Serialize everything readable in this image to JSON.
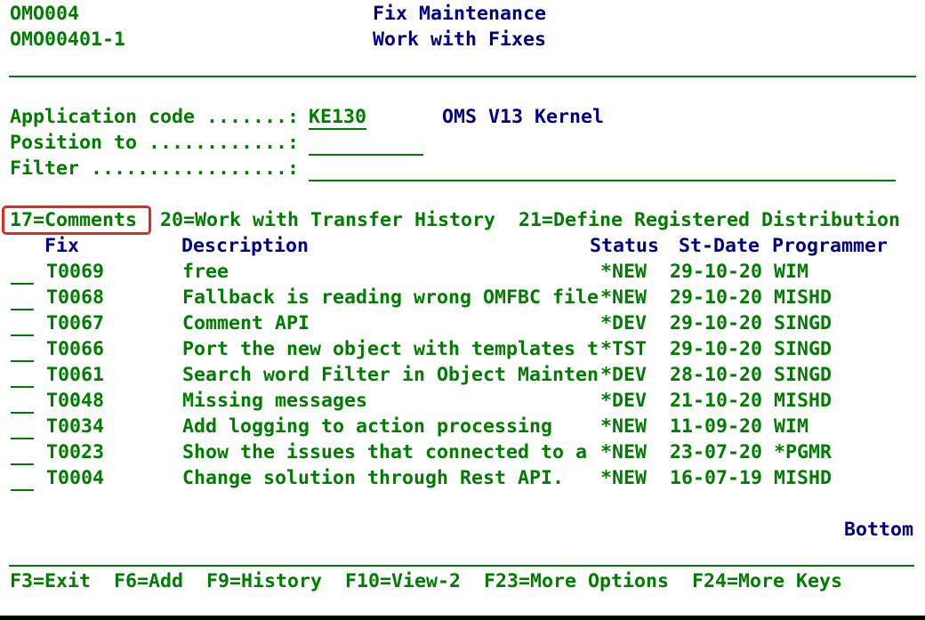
{
  "screen": {
    "program_id": "OMO004",
    "panel_id": "OMO00401-1",
    "title": "Fix Maintenance",
    "subtitle": "Work with Fixes"
  },
  "fields": {
    "application_code": {
      "label": "Application code .......:",
      "value": "KE130",
      "description": "OMS V13 Kernel"
    },
    "position_to": {
      "label": "Position to ............:",
      "value": ""
    },
    "filter": {
      "label": "Filter .................:",
      "value": ""
    }
  },
  "options_line": "17=Comments  20=Work with Transfer History  21=Define Registered Distribution",
  "highlighted_option": "17=Comments",
  "table": {
    "headers": {
      "fix": "Fix",
      "description": "Description",
      "status": "Status",
      "st_date": "St-Date",
      "programmer": "Programmer"
    },
    "rows": [
      {
        "opt": "",
        "fix": "T0069",
        "description": "free",
        "status": "*NEW",
        "st_date": "29-10-20",
        "programmer": "WIM"
      },
      {
        "opt": "",
        "fix": "T0068",
        "description": "Fallback is reading wrong OMFBC file",
        "status": "*NEW",
        "st_date": "29-10-20",
        "programmer": "MISHD"
      },
      {
        "opt": "",
        "fix": "T0067",
        "description": "Comment API",
        "status": "*DEV",
        "st_date": "29-10-20",
        "programmer": "SINGD"
      },
      {
        "opt": "",
        "fix": "T0066",
        "description": "Port the new object with templates t",
        "status": "*TST",
        "st_date": "29-10-20",
        "programmer": "SINGD"
      },
      {
        "opt": "",
        "fix": "T0061",
        "description": "Search word Filter in Object Mainten",
        "status": "*DEV",
        "st_date": "28-10-20",
        "programmer": "SINGD"
      },
      {
        "opt": "",
        "fix": "T0048",
        "description": "Missing messages",
        "status": "*DEV",
        "st_date": "21-10-20",
        "programmer": "MISHD"
      },
      {
        "opt": "",
        "fix": "T0034",
        "description": "Add logging to action processing",
        "status": "*NEW",
        "st_date": "11-09-20",
        "programmer": "WIM"
      },
      {
        "opt": "",
        "fix": "T0023",
        "description": "Show the issues that connected to a",
        "status": "*NEW",
        "st_date": "23-07-20",
        "programmer": "*PGMR"
      },
      {
        "opt": "",
        "fix": "T0004",
        "description": "Change solution through Rest API.",
        "status": "*NEW",
        "st_date": "16-07-19",
        "programmer": "MISHD"
      }
    ]
  },
  "pagination": "Bottom",
  "function_keys": "F3=Exit  F6=Add  F9=History  F10=View-2  F23=More Options  F24=More Keys",
  "colors": {
    "green": "#007d00",
    "navy": "#000087",
    "red": "#e02b20"
  }
}
